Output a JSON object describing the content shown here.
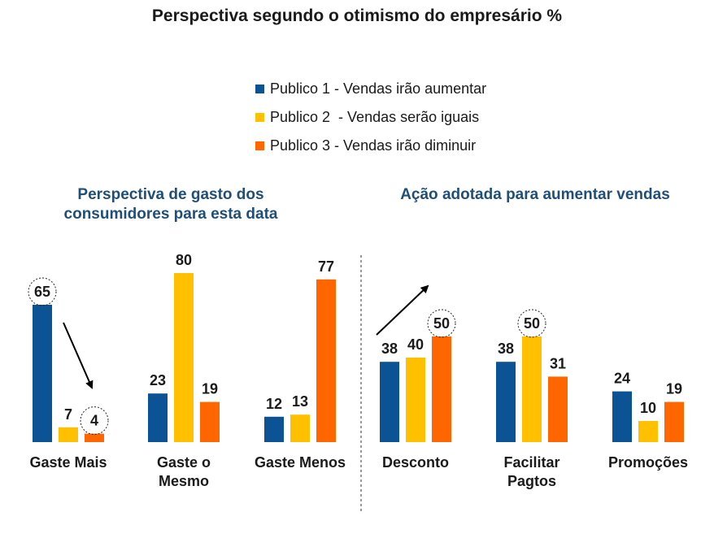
{
  "title": "Perspectiva segundo o otimismo do empresário %",
  "legend": [
    {
      "label": "Publico 1 - Vendas irão aumentar",
      "color": "#0b5394"
    },
    {
      "label": "Publico 2  - Vendas serão iguais",
      "color": "#ffc000"
    },
    {
      "label": "Publico 3 - Vendas irão diminuir",
      "color": "#ff6600"
    }
  ],
  "chart_data": [
    {
      "type": "bar",
      "title": "Perspectiva de gasto dos consumidores para esta data",
      "categories": [
        [
          "Gaste Mais"
        ],
        [
          "Gaste o",
          "Mesmo"
        ],
        [
          "Gaste Menos"
        ]
      ],
      "series": [
        {
          "name": "Publico 1 - Vendas irão aumentar",
          "values": [
            65,
            23,
            12
          ]
        },
        {
          "name": "Publico 2  - Vendas serão iguais",
          "values": [
            7,
            80,
            13
          ]
        },
        {
          "name": "Publico 3 - Vendas irão diminuir",
          "values": [
            4,
            19,
            77
          ]
        }
      ],
      "ylim": [
        0,
        80
      ],
      "grid": false,
      "highlighted": [
        "65",
        "4"
      ]
    },
    {
      "type": "bar",
      "title": "Ação adotada para aumentar vendas",
      "categories": [
        [
          "Desconto"
        ],
        [
          "Facilitar",
          "Pagtos"
        ],
        [
          "Promoções"
        ]
      ],
      "series": [
        {
          "name": "Publico 1 - Vendas irão aumentar",
          "values": [
            38,
            38,
            24
          ]
        },
        {
          "name": "Publico 2  - Vendas serão iguais",
          "values": [
            40,
            50,
            10
          ]
        },
        {
          "name": "Publico 3 - Vendas irão diminuir",
          "values": [
            50,
            31,
            19
          ]
        }
      ],
      "ylim": [
        0,
        80
      ],
      "grid": false,
      "highlighted": [
        "50"
      ]
    }
  ]
}
